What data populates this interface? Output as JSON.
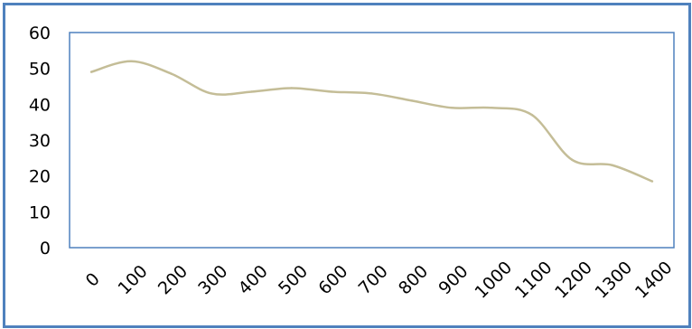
{
  "chart_data": {
    "type": "line",
    "title": "",
    "xlabel": "",
    "ylabel": "",
    "x": [
      0,
      100,
      200,
      300,
      400,
      500,
      600,
      700,
      800,
      900,
      1000,
      1100,
      1200,
      1300,
      1400
    ],
    "series": [
      {
        "values": [
          49,
          52,
          48.5,
          43,
          43.5,
          44.5,
          43.5,
          43,
          41,
          39,
          39,
          37,
          24.5,
          23,
          18.5
        ]
      }
    ],
    "ylim": [
      0,
      60
    ],
    "yticks": [
      0,
      10,
      20,
      30,
      40,
      50,
      60
    ],
    "xtick_labels": [
      "0",
      "100",
      "200",
      "300",
      "400",
      "500",
      "600",
      "700",
      "800",
      "900",
      "1000",
      "1100",
      "1200",
      "1300",
      "1400"
    ],
    "ytick_labels": [
      "0",
      "10",
      "20",
      "30",
      "40",
      "50",
      "60"
    ],
    "grid": false,
    "legend": "none",
    "colors": {
      "line": "#c4bd97",
      "plot_border": "#4f81bd",
      "frame_border": "#4f81bd"
    }
  }
}
